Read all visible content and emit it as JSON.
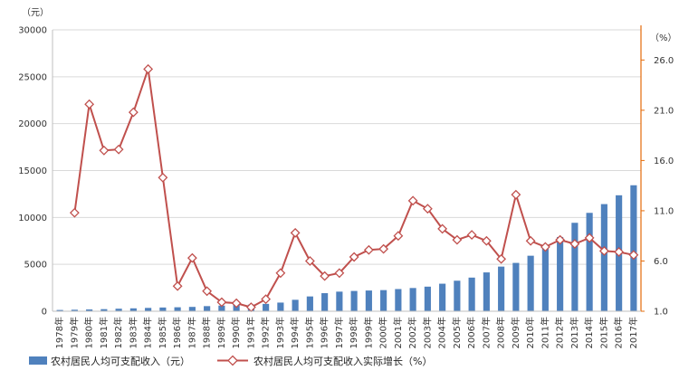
{
  "chart_data": {
    "type": "bar",
    "categories": [
      "1978年",
      "1979年",
      "1980年",
      "1981年",
      "1982年",
      "1983年",
      "1984年",
      "1985年",
      "1986年",
      "1987年",
      "1988年",
      "1989年",
      "1990年",
      "1991年",
      "1992年",
      "1993年",
      "1994年",
      "1995年",
      "1996年",
      "1997年",
      "1998年",
      "1999年",
      "2000年",
      "2001年",
      "2002年",
      "2003年",
      "2004年",
      "2005年",
      "2006年",
      "2007年",
      "2008年",
      "2009年",
      "2010年",
      "2011年",
      "2012年",
      "2013年",
      "2014年",
      "2015年",
      "2016年",
      "2017年"
    ],
    "series": [
      {
        "name": "农村居民人均可支配收入（元）",
        "type": "bar",
        "axis": "left",
        "color": "#4f81bd",
        "values": [
          134,
          160,
          191,
          223,
          270,
          310,
          355,
          398,
          424,
          463,
          545,
          602,
          686,
          709,
          784,
          922,
          1221,
          1578,
          1926,
          2090,
          2162,
          2210,
          2253,
          2366,
          2476,
          2622,
          2936,
          3255,
          3587,
          4140,
          4761,
          5153,
          5919,
          6977,
          7917,
          9430,
          10489,
          11422,
          12363,
          13432
        ]
      },
      {
        "name": "农村居民人均可支配收入实际增长（%）",
        "type": "line",
        "axis": "right",
        "color": "#c0504d",
        "marker": "diamond",
        "values": [
          null,
          10.8,
          21.6,
          17.0,
          17.1,
          20.8,
          25.1,
          14.3,
          3.5,
          6.3,
          3.0,
          1.9,
          1.8,
          1.4,
          2.2,
          4.8,
          8.8,
          6.0,
          4.5,
          4.8,
          6.4,
          7.1,
          7.2,
          8.5,
          12.0,
          11.2,
          9.2,
          8.1,
          8.6,
          8.0,
          6.2,
          12.6,
          8.0,
          7.4,
          8.1,
          7.7,
          8.3,
          7.0,
          6.9,
          6.6
        ]
      }
    ],
    "y_left": {
      "label": "（元）",
      "min": 0,
      "max": 30000,
      "ticks": [
        0,
        5000,
        10000,
        15000,
        20000,
        25000,
        30000
      ]
    },
    "y_right": {
      "label": "（%）",
      "min": 1.0,
      "max": 29.0,
      "ticks": [
        1.0,
        6.0,
        11.0,
        16.0,
        21.0,
        26.0
      ]
    },
    "grid": true,
    "legend_position": "bottom-left"
  }
}
